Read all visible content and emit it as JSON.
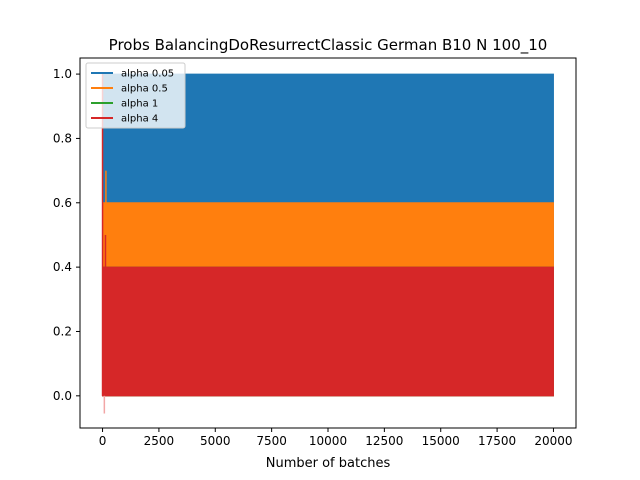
{
  "chart_data": {
    "type": "area",
    "title": "Probs BalancingDoResurrectClassic German B10 N 100_10",
    "xlabel": "Number of batches",
    "ylabel": "",
    "xlim": [
      -1000,
      21000
    ],
    "ylim": [
      -0.1,
      1.05
    ],
    "xticks": [
      0,
      2500,
      5000,
      7500,
      10000,
      12500,
      15000,
      17500,
      20000
    ],
    "xtick_labels": [
      "0",
      "2500",
      "5000",
      "7500",
      "10000",
      "12500",
      "15000",
      "17500",
      "20000"
    ],
    "yticks": [
      0.0,
      0.2,
      0.4,
      0.6,
      0.8,
      1.0
    ],
    "ytick_labels": [
      "0.0",
      "0.2",
      "0.4",
      "0.6",
      "0.8",
      "1.0"
    ],
    "grid": false,
    "legend_position": "top-left",
    "series": [
      {
        "name": "alpha 0.05",
        "color": "#1f77b4",
        "x": [
          0,
          20000
        ],
        "low": [
          0.0,
          0.0
        ],
        "high": [
          1.0,
          1.0
        ]
      },
      {
        "name": "alpha 0.5",
        "color": "#ff7f0e",
        "x": [
          0,
          20000
        ],
        "low": [
          0.0,
          0.0
        ],
        "high": [
          0.6,
          0.6
        ]
      },
      {
        "name": "alpha 1",
        "color": "#2ca02c",
        "x": [
          0,
          20000
        ],
        "low": [
          0.0,
          0.0
        ],
        "high": [
          0.4,
          0.4
        ]
      },
      {
        "name": "alpha 4",
        "color": "#d62728",
        "x": [
          0,
          20000
        ],
        "low": [
          0.0,
          0.0
        ],
        "high": [
          0.4,
          0.4
        ]
      }
    ]
  }
}
